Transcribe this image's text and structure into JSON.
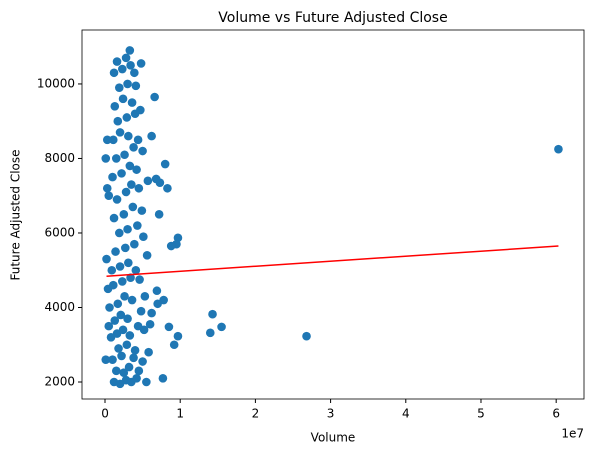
{
  "chart_data": {
    "type": "scatter",
    "title": "Volume vs Future Adjusted Close",
    "xlabel": "Volume",
    "ylabel": "Future Adjusted Close",
    "x_offset_label": "1e7",
    "series": [
      {
        "color": "#1f77b4",
        "x": [
          1200000,
          2000000,
          2800000,
          3500000,
          4200000,
          5500000,
          1500000,
          2500000,
          3200000,
          4500000,
          1000000,
          2200000,
          3800000,
          5000000,
          1800000,
          2900000,
          4000000,
          5800000,
          800000,
          1600000,
          2400000,
          3300000,
          4400000,
          5200000,
          6000000,
          500000,
          1300000,
          2100000,
          3000000,
          4800000,
          600000,
          1700000,
          2600000,
          3600000,
          5300000,
          400000,
          1100000,
          2300000,
          3400000,
          4600000,
          900000,
          2000000,
          3100000,
          4100000,
          5600000,
          1400000,
          2700000,
          3900000,
          5100000,
          1900000,
          3000000,
          4300000,
          1200000,
          2500000,
          3700000,
          4900000,
          500000,
          1600000,
          2800000,
          3500000,
          4500000,
          5700000,
          1000000,
          2200000,
          3300000,
          4200000,
          1500000,
          2600000,
          3800000,
          5000000,
          1100000,
          2000000,
          3100000,
          4400000,
          1700000,
          2900000,
          4000000,
          1300000,
          2400000,
          3600000,
          4700000,
          1900000,
          3000000,
          4100000,
          1200000,
          2300000,
          3400000,
          2800000,
          1600000,
          3900000,
          60300000,
          26800000,
          15500000,
          14300000,
          14000000,
          9700000,
          9500000,
          8800000,
          9700000,
          9200000,
          8500000,
          7700000,
          8000000,
          8300000,
          7300000,
          6800000,
          7200000,
          6600000,
          6200000,
          4800000,
          3300000,
          7800000,
          6900000,
          7000000,
          6200000,
          100000,
          300000,
          100000,
          200000,
          300000
        ],
        "y": [
          2000,
          1950,
          2050,
          2000,
          2100,
          2000,
          2300,
          2250,
          2400,
          2300,
          2600,
          2700,
          2650,
          2550,
          2900,
          3000,
          2850,
          2800,
          3200,
          3300,
          3400,
          3250,
          3500,
          3400,
          3550,
          3500,
          3650,
          3800,
          3700,
          3900,
          4000,
          4100,
          4300,
          4200,
          4300,
          4500,
          4600,
          4700,
          4800,
          4750,
          5000,
          5100,
          5200,
          5000,
          5400,
          5500,
          5600,
          5700,
          5900,
          6000,
          6100,
          6200,
          6400,
          6500,
          6700,
          6600,
          7000,
          6900,
          7100,
          7300,
          7200,
          7400,
          7500,
          7600,
          7800,
          7700,
          8000,
          8100,
          8300,
          8200,
          8500,
          8700,
          8600,
          8500,
          9000,
          9100,
          9200,
          9400,
          9600,
          9500,
          9300,
          9900,
          10000,
          9950,
          10300,
          10400,
          10500,
          10700,
          10600,
          10300,
          8250,
          3230,
          3480,
          3820,
          3320,
          5870,
          5700,
          5650,
          3230,
          3000,
          3480,
          2100,
          7850,
          7200,
          7350,
          7450,
          6500,
          9650,
          8600,
          10550,
          10900,
          4200,
          4450,
          4100,
          3850,
          8000,
          8500,
          2600,
          5300,
          7200
        ]
      }
    ],
    "trend": {
      "color": "#ff0000",
      "x": [
        200000,
        60300000
      ],
      "y": [
        4840,
        5650
      ]
    },
    "xlim": [
      -3060000,
      63700000
    ],
    "xticks": [
      {
        "value": 0,
        "label": "0"
      },
      {
        "value": 10000000,
        "label": "1"
      },
      {
        "value": 20000000,
        "label": "2"
      },
      {
        "value": 30000000,
        "label": "3"
      },
      {
        "value": 40000000,
        "label": "4"
      },
      {
        "value": 50000000,
        "label": "5"
      },
      {
        "value": 60000000,
        "label": "6"
      }
    ],
    "ylim": [
      1544,
      11448
    ],
    "yticks": [
      2000,
      4000,
      6000,
      8000,
      10000
    ]
  }
}
